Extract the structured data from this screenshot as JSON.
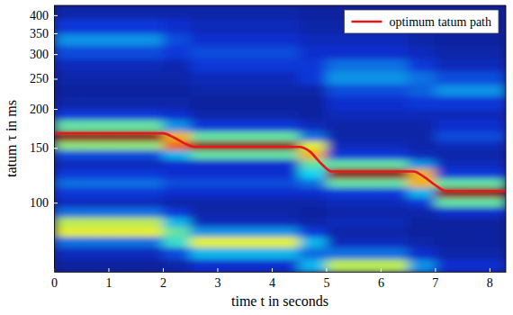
{
  "chart_data": {
    "type": "heatmap",
    "x_label": "time t in seconds",
    "y_label": "tatum τ in ms",
    "log": "y",
    "xlim": [
      0,
      8.3
    ],
    "ylim": [
      60,
      430
    ],
    "xticks": [
      0,
      1,
      2,
      3,
      4,
      5,
      6,
      7,
      8
    ],
    "yticks": [
      100,
      150,
      200,
      250,
      300,
      350,
      400
    ],
    "x_edges": [
      0,
      0.5,
      1,
      1.5,
      2,
      2.5,
      3,
      3.5,
      4,
      4.5,
      5,
      5.5,
      6,
      6.5,
      7,
      7.5,
      8,
      8.3
    ],
    "y_edges": [
      60,
      66,
      72,
      78,
      84,
      90,
      97,
      104,
      112,
      120,
      129,
      138,
      148,
      158,
      170,
      185,
      200,
      220,
      240,
      265,
      290,
      320,
      350,
      390,
      430
    ],
    "color_range": [
      0,
      1
    ],
    "z": [
      [
        0.05,
        0.08,
        0.2,
        0.6,
        0.55,
        0.2,
        0.08,
        0.12,
        0.2,
        0.12,
        0.08,
        0.15,
        0.5,
        1.0,
        0.45,
        0.12,
        0.06,
        0.05,
        0.06,
        0.08,
        0.15,
        0.25,
        0.12,
        0.06
      ],
      [
        0.05,
        0.08,
        0.2,
        0.6,
        0.55,
        0.2,
        0.08,
        0.12,
        0.2,
        0.12,
        0.08,
        0.15,
        0.5,
        1.0,
        0.45,
        0.12,
        0.06,
        0.05,
        0.06,
        0.08,
        0.15,
        0.25,
        0.12,
        0.06
      ],
      [
        0.05,
        0.08,
        0.2,
        0.6,
        0.55,
        0.2,
        0.08,
        0.12,
        0.2,
        0.12,
        0.08,
        0.15,
        0.5,
        1.0,
        0.45,
        0.12,
        0.06,
        0.05,
        0.06,
        0.08,
        0.15,
        0.25,
        0.12,
        0.06
      ],
      [
        0.05,
        0.08,
        0.2,
        0.6,
        0.55,
        0.2,
        0.08,
        0.12,
        0.2,
        0.12,
        0.08,
        0.15,
        0.5,
        1.0,
        0.45,
        0.12,
        0.06,
        0.05,
        0.06,
        0.08,
        0.15,
        0.25,
        0.12,
        0.06
      ],
      [
        0.06,
        0.15,
        0.4,
        0.45,
        0.3,
        0.12,
        0.06,
        0.1,
        0.15,
        0.1,
        0.1,
        0.3,
        0.8,
        0.7,
        0.25,
        0.1,
        0.06,
        0.05,
        0.06,
        0.07,
        0.12,
        0.15,
        0.1,
        0.06
      ],
      [
        0.1,
        0.3,
        0.6,
        0.25,
        0.08,
        0.06,
        0.06,
        0.1,
        0.15,
        0.1,
        0.1,
        0.45,
        1.0,
        0.45,
        0.12,
        0.06,
        0.05,
        0.06,
        0.08,
        0.12,
        0.15,
        0.1,
        0.08,
        0.06
      ],
      [
        0.1,
        0.3,
        0.6,
        0.25,
        0.08,
        0.06,
        0.06,
        0.1,
        0.15,
        0.1,
        0.1,
        0.45,
        1.0,
        0.45,
        0.12,
        0.06,
        0.05,
        0.06,
        0.08,
        0.12,
        0.15,
        0.1,
        0.08,
        0.06
      ],
      [
        0.1,
        0.3,
        0.6,
        0.25,
        0.08,
        0.06,
        0.06,
        0.1,
        0.15,
        0.1,
        0.1,
        0.45,
        1.0,
        0.45,
        0.12,
        0.06,
        0.05,
        0.06,
        0.08,
        0.12,
        0.15,
        0.1,
        0.08,
        0.06
      ],
      [
        0.1,
        0.3,
        0.6,
        0.25,
        0.08,
        0.06,
        0.06,
        0.1,
        0.15,
        0.1,
        0.1,
        0.45,
        1.0,
        0.45,
        0.12,
        0.06,
        0.05,
        0.06,
        0.08,
        0.12,
        0.15,
        0.1,
        0.08,
        0.06
      ],
      [
        0.3,
        0.2,
        0.3,
        0.12,
        0.06,
        0.05,
        0.06,
        0.1,
        0.2,
        0.35,
        0.45,
        0.7,
        0.6,
        0.2,
        0.08,
        0.05,
        0.05,
        0.06,
        0.12,
        0.12,
        0.1,
        0.08,
        0.06,
        0.05
      ],
      [
        0.55,
        0.2,
        0.08,
        0.06,
        0.08,
        0.06,
        0.08,
        0.12,
        0.45,
        1.0,
        0.45,
        0.12,
        0.08,
        0.06,
        0.06,
        0.08,
        0.1,
        0.15,
        0.25,
        0.2,
        0.1,
        0.08,
        0.06,
        0.05
      ],
      [
        0.55,
        0.2,
        0.08,
        0.06,
        0.08,
        0.06,
        0.08,
        0.12,
        0.45,
        1.0,
        0.45,
        0.12,
        0.08,
        0.06,
        0.06,
        0.08,
        0.1,
        0.15,
        0.25,
        0.2,
        0.1,
        0.08,
        0.06,
        0.05
      ],
      [
        0.55,
        0.2,
        0.08,
        0.06,
        0.08,
        0.06,
        0.08,
        0.12,
        0.45,
        1.0,
        0.45,
        0.12,
        0.08,
        0.06,
        0.06,
        0.08,
        0.1,
        0.15,
        0.25,
        0.2,
        0.1,
        0.08,
        0.06,
        0.05
      ],
      [
        0.25,
        0.1,
        0.06,
        0.05,
        0.05,
        0.06,
        0.12,
        0.3,
        0.7,
        0.7,
        0.25,
        0.08,
        0.06,
        0.06,
        0.06,
        0.08,
        0.12,
        0.18,
        0.2,
        0.12,
        0.08,
        0.06,
        0.05,
        0.05
      ],
      [
        0.1,
        0.06,
        0.05,
        0.05,
        0.05,
        0.1,
        0.45,
        1.0,
        0.45,
        0.12,
        0.08,
        0.06,
        0.08,
        0.15,
        0.1,
        0.08,
        0.12,
        0.25,
        0.15,
        0.08,
        0.06,
        0.05,
        0.05,
        0.05
      ],
      [
        0.1,
        0.06,
        0.05,
        0.05,
        0.05,
        0.1,
        0.45,
        1.0,
        0.45,
        0.12,
        0.08,
        0.06,
        0.08,
        0.15,
        0.1,
        0.08,
        0.12,
        0.25,
        0.15,
        0.08,
        0.06,
        0.05,
        0.05,
        0.05
      ],
      [
        0.1,
        0.06,
        0.05,
        0.05,
        0.05,
        0.1,
        0.45,
        1.0,
        0.45,
        0.12,
        0.08,
        0.06,
        0.08,
        0.15,
        0.1,
        0.08,
        0.12,
        0.25,
        0.15,
        0.08,
        0.06,
        0.05,
        0.05,
        0.05
      ]
    ],
    "series": [
      {
        "name": "optimum tatum path",
        "type": "line",
        "color": "#e31a1c",
        "x": [
          0,
          2.0,
          2.2,
          2.4,
          2.6,
          4.5,
          4.7,
          4.9,
          5.1,
          6.6,
          6.8,
          7.0,
          7.2,
          8.3
        ],
        "values": [
          167,
          167,
          162,
          155,
          151,
          151,
          146,
          134,
          126,
          126,
          121,
          114,
          109,
          109
        ]
      }
    ],
    "legend": "upper right"
  }
}
